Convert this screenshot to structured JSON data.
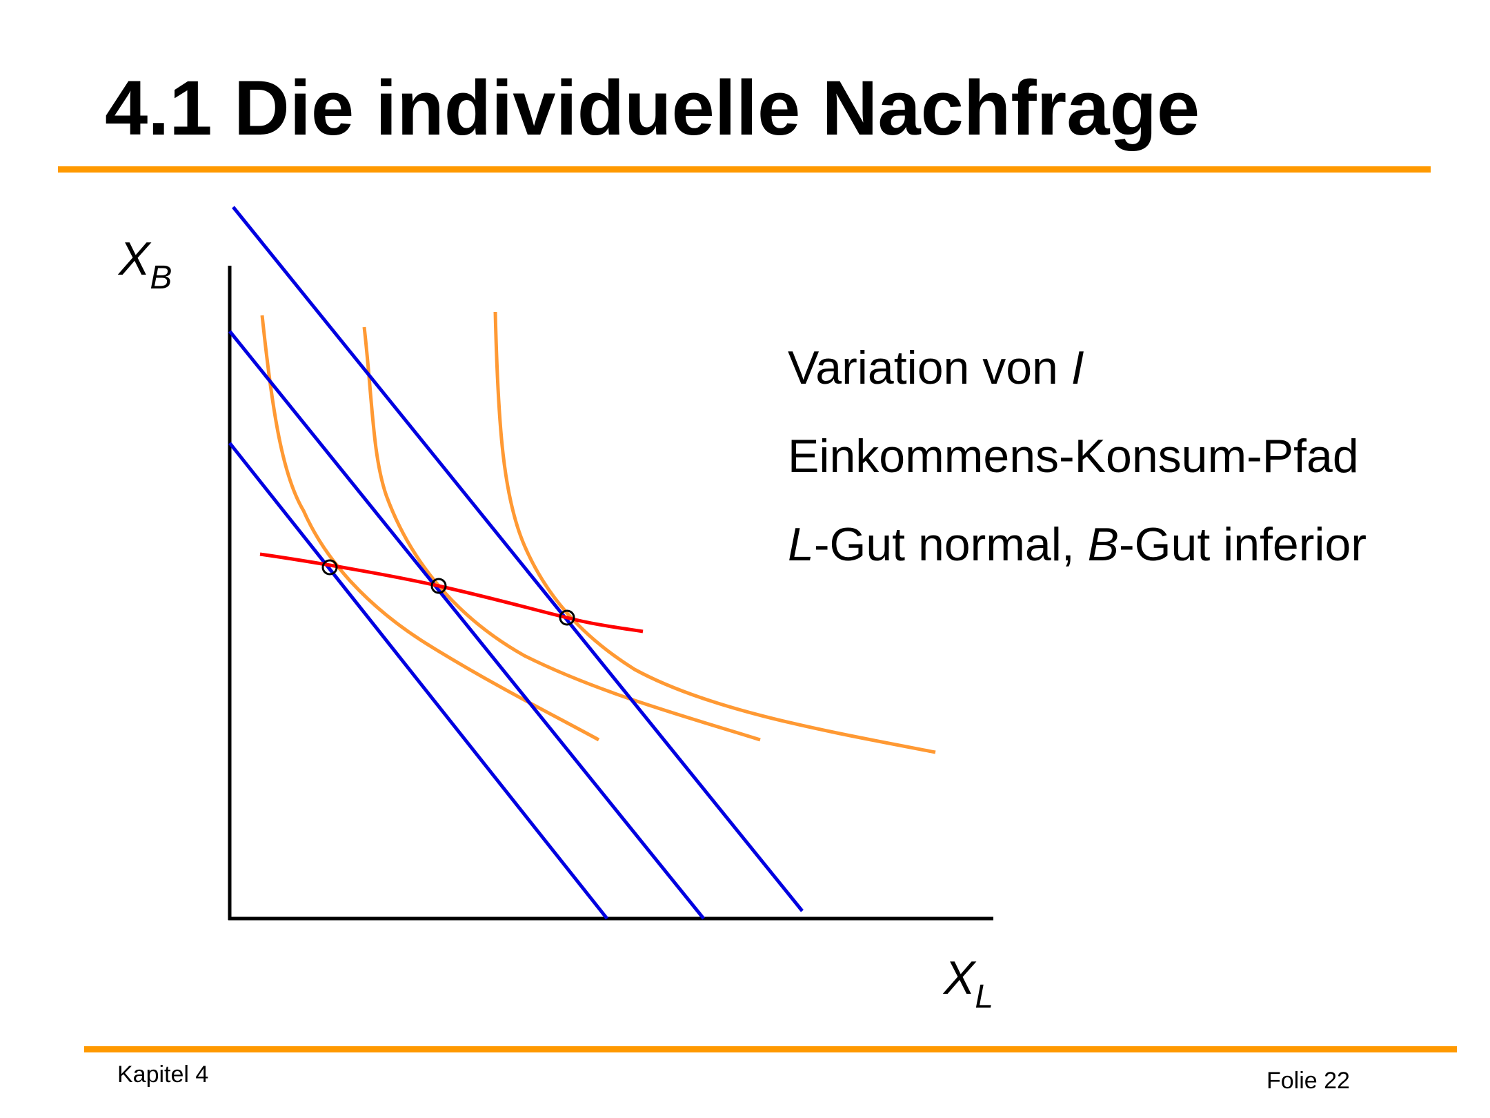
{
  "slide": {
    "title": "4.1 Die individuelle Nachfrage",
    "footer_left": "Kapitel 4",
    "footer_right": "Folie 22"
  },
  "notes": {
    "line1_text": "Variation von ",
    "line1_var": "I",
    "line2": "Einkommens-Konsum-Pfad",
    "line3_var_l": "L",
    "line3_mid": "-Gut normal, ",
    "line3_var_b": "B",
    "line3_end": "-Gut inferior"
  },
  "axes": {
    "y_main": "X",
    "y_sub": "B",
    "x_main": "X",
    "x_sub": "L"
  },
  "colors": {
    "budget_line": "#0000e0",
    "indifference_curve": "#ff9933",
    "income_consumption_path": "#ff0000",
    "rule": "#ff9900",
    "axis": "#000000"
  },
  "chart_data": {
    "type": "diagram",
    "axes": {
      "x": "X_L",
      "y": "X_B"
    },
    "budget_lines": 3,
    "indifference_curves": 3,
    "optima": 3,
    "path": "income-consumption path (downward sloping)"
  }
}
